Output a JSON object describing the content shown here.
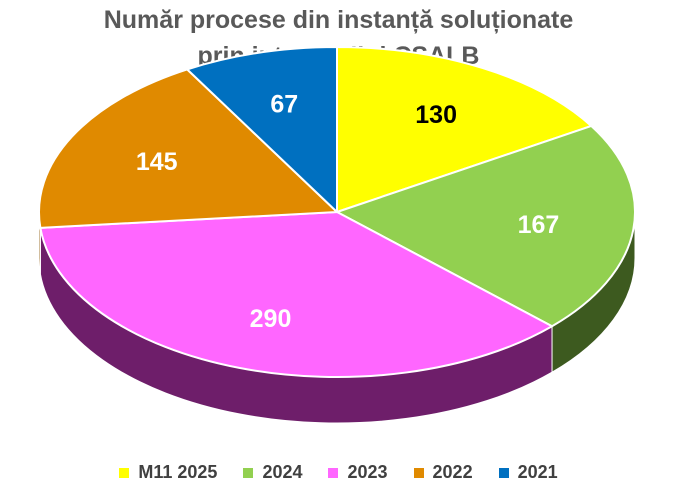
{
  "chart_data": {
    "type": "pie",
    "title_line1": "Număr procese din instanță soluționate",
    "title_line2": "prin intermediul CSALB",
    "categories": [
      "M11 2025",
      "2024",
      "2023",
      "2022",
      "2021"
    ],
    "values": [
      130,
      167,
      290,
      145,
      67
    ],
    "colors": [
      "#FFFF00",
      "#92D050",
      "#FF66FF",
      "#E08A00",
      "#0070C0"
    ],
    "side_colors": [
      "#B8B800",
      "#3D5A1F",
      "#6E1E6A",
      "#8A5200",
      "#00407A"
    ],
    "label_colors": [
      "#000000",
      "#FFFFFF",
      "#FFFFFF",
      "#FFFFFF",
      "#FFFFFF"
    ],
    "legend_position": "bottom",
    "style": "3d"
  }
}
